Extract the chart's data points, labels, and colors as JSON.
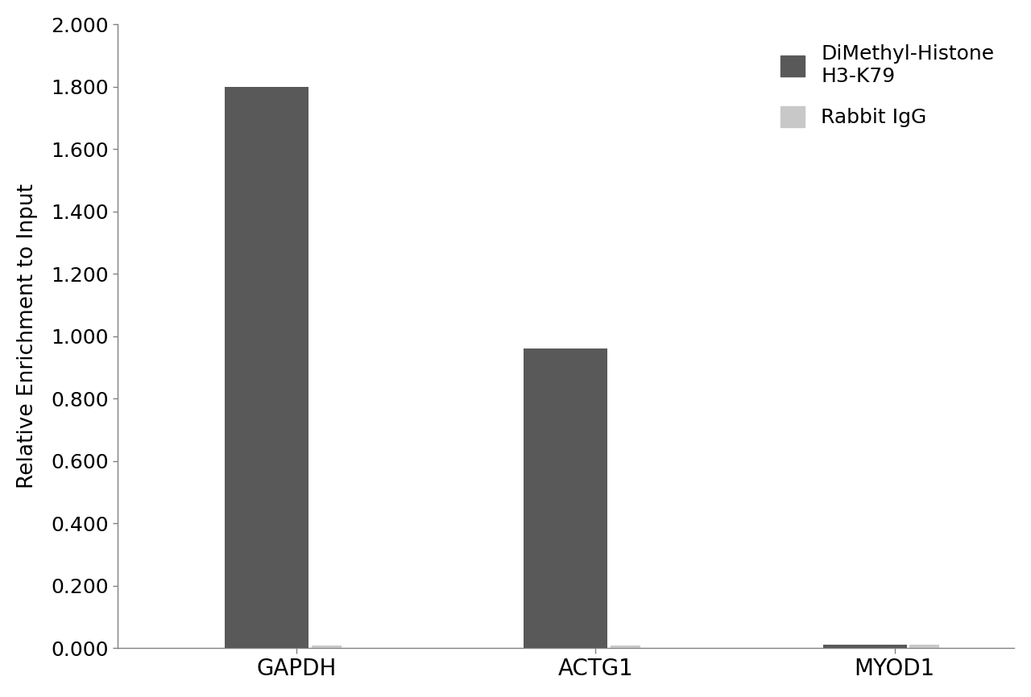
{
  "categories": [
    "GAPDH",
    "ACTG1",
    "MYOD1"
  ],
  "dimethyl_values": [
    1.8,
    0.96,
    0.01
  ],
  "igg_values": [
    0.008,
    0.008,
    0.012
  ],
  "dimethyl_color": "#595959",
  "igg_color": "#c8c8c8",
  "ylabel": "Relative Enrichment to Input",
  "ylim": [
    0.0,
    2.0
  ],
  "yticks": [
    0.0,
    0.2,
    0.4,
    0.6,
    0.8,
    1.0,
    1.2,
    1.4,
    1.6,
    1.8,
    2.0
  ],
  "ytick_labels": [
    "0.000",
    "0.200",
    "0.400",
    "0.600",
    "0.800",
    "1.000",
    "1.200",
    "1.400",
    "1.600",
    "1.800",
    "2.000"
  ],
  "legend_label1": "DiMethyl-Histone\nH3-K79",
  "legend_label2": "Rabbit IgG",
  "dimethyl_bar_width": 0.28,
  "igg_bar_width": 0.1,
  "background_color": "#ffffff",
  "tick_fontsize": 18,
  "label_fontsize": 19,
  "legend_fontsize": 18,
  "spine_color": "#808080"
}
